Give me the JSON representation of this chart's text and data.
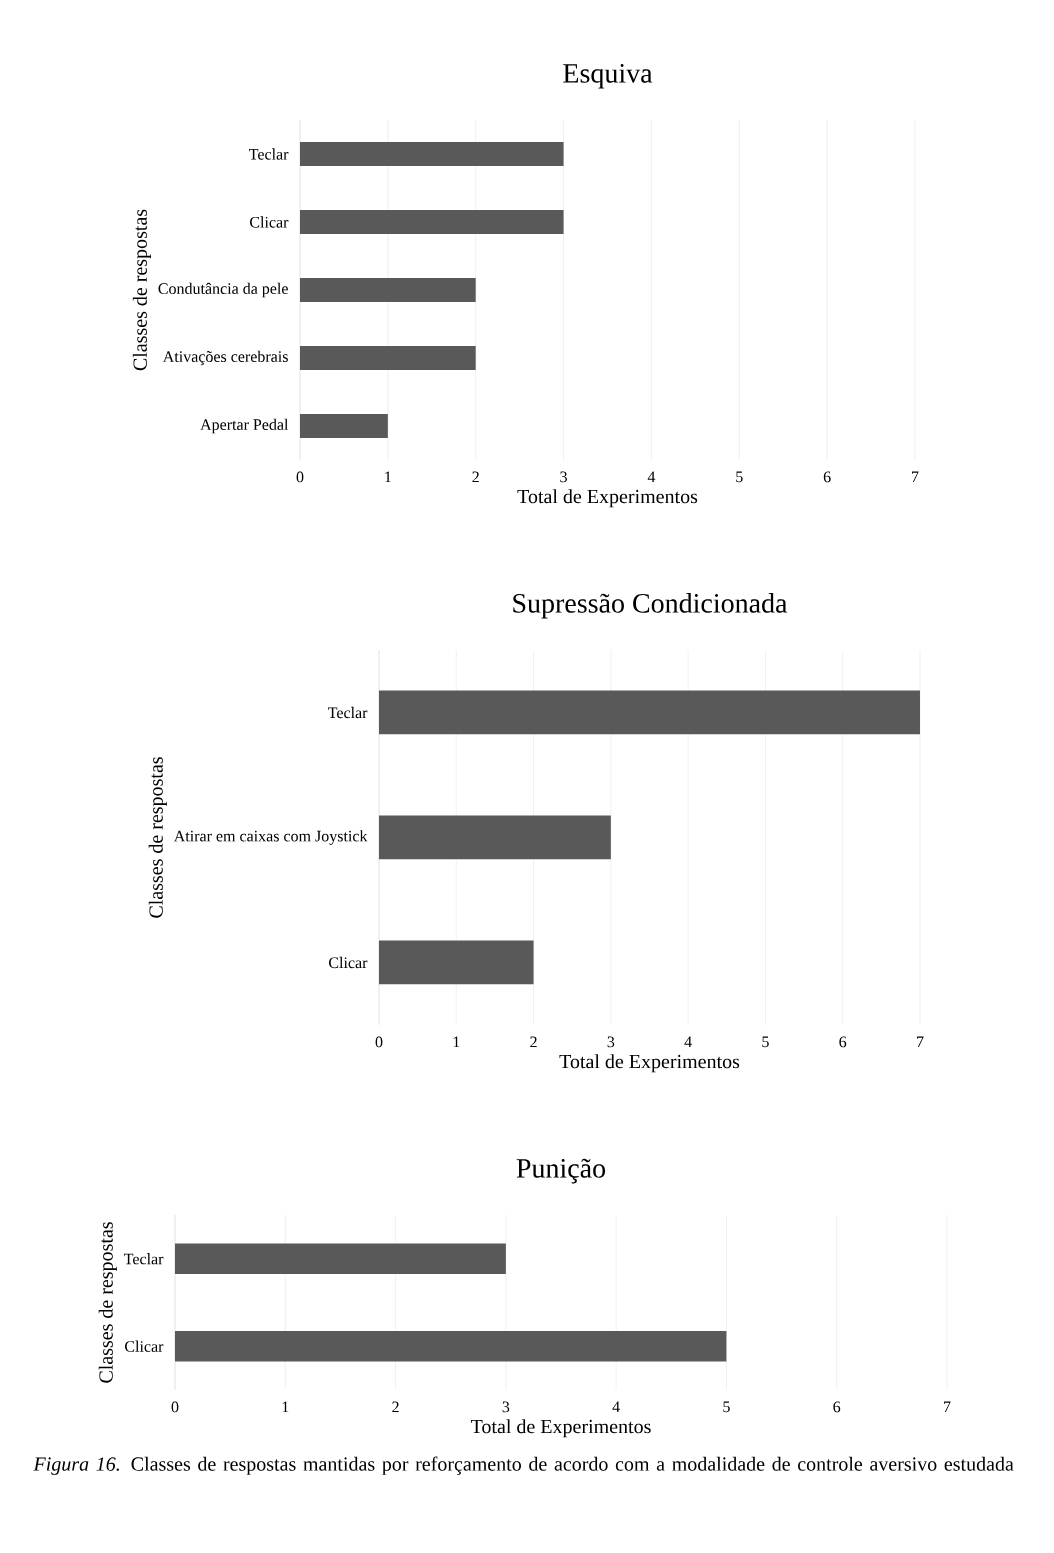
{
  "chart_data": [
    {
      "type": "bar",
      "orientation": "horizontal",
      "title": "Esquiva",
      "xlabel": "Total de Experimentos",
      "ylabel": "Classes de respostas",
      "categories": [
        "Teclar",
        "Clicar",
        "Condutância da pele",
        "Ativações cerebrais",
        "Apertar Pedal"
      ],
      "values": [
        3,
        3,
        2,
        2,
        1
      ],
      "color": "#595959",
      "xlim": [
        0,
        7
      ],
      "xticks": [
        0,
        1,
        2,
        3,
        4,
        5,
        6,
        7
      ],
      "grid": "x"
    },
    {
      "type": "bar",
      "orientation": "horizontal",
      "title": "Supressão  Condicionada",
      "xlabel": "Total de Experimentos",
      "ylabel": "Classes de respostas",
      "categories": [
        "Teclar",
        "Atirar em caixas com Joystick",
        "Clicar"
      ],
      "values": [
        7,
        3,
        2
      ],
      "color": "#595959",
      "xlim": [
        0,
        7
      ],
      "xticks": [
        0,
        1,
        2,
        3,
        4,
        5,
        6,
        7
      ],
      "grid": "x"
    },
    {
      "type": "bar",
      "orientation": "horizontal",
      "title": "Punição",
      "xlabel": "Total de Experimentos",
      "ylabel": "Classes de respostas",
      "categories": [
        "Teclar",
        "Clicar"
      ],
      "values": [
        3,
        5
      ],
      "color": "#595959",
      "xlim": [
        0,
        7
      ],
      "xticks": [
        0,
        1,
        2,
        3,
        4,
        5,
        6,
        7
      ],
      "grid": "x",
      "annotations": [
        "*Figura 16.* Classes de respostas mantidas por reforçamento de acordo com a modalidade de controle aversivo estudada"
      ]
    }
  ]
}
